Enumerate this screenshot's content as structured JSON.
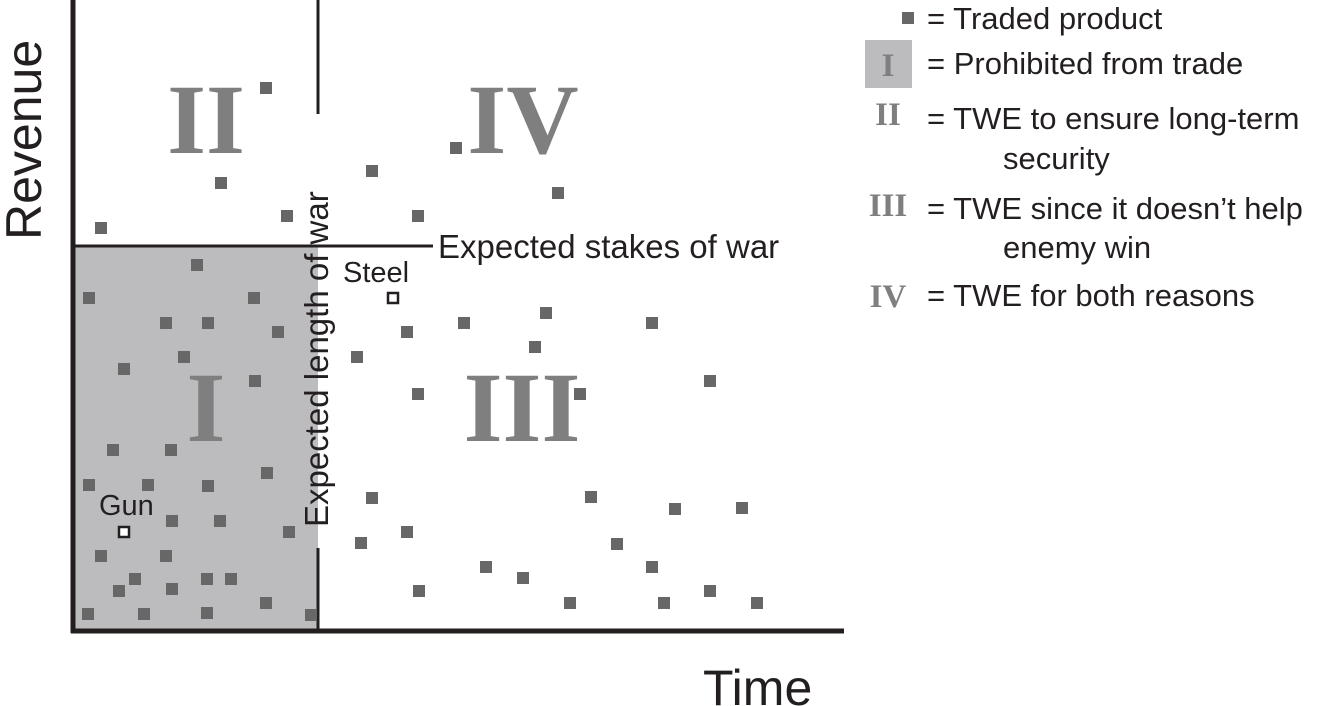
{
  "axes": {
    "x_label": "Time",
    "y_label": "Revenue"
  },
  "lines": {
    "horizontal_label": "Expected stakes of war",
    "vertical_label": "Expected length of war"
  },
  "regions": {
    "i": "I",
    "ii": "II",
    "iii": "III",
    "iv": "IV"
  },
  "named_points": {
    "gun": "Gun",
    "steel": "Steel"
  },
  "legend": {
    "traded": "= Traded product",
    "prohibited_key": "I",
    "prohibited": "= Prohibited from trade",
    "ii_key": "II",
    "ii_line1": "= TWE to ensure long-term",
    "ii_line2": "security",
    "iii_key": "III",
    "iii_line1": "= TWE since it doesn’t help",
    "iii_line2": "enemy win",
    "iv_key": "IV",
    "iv_line1": "= TWE for both reasons"
  },
  "colors": {
    "ink": "#231f20",
    "marker": "#676767",
    "roman": "#7f7f7f",
    "shade": "#bcbcbe"
  }
}
